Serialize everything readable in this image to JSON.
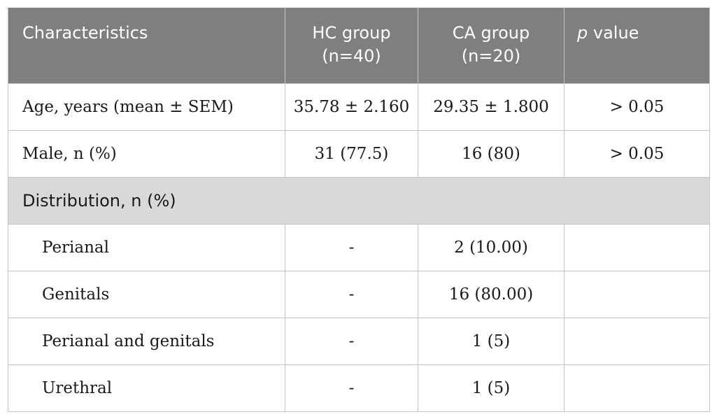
{
  "table": {
    "headers": {
      "characteristics": "Characteristics",
      "hc_group_line1": "HC group",
      "hc_group_line2": "(n=40)",
      "ca_group_line1": "CA group",
      "ca_group_line2": "(n=20)",
      "p_italic": "p",
      "p_rest": " value"
    },
    "rows": [
      {
        "label": "Age, years (mean ± SEM)",
        "hc": "35.78 ± 2.160",
        "ca": "29.35 ± 1.800",
        "p": "> 0.05"
      },
      {
        "label": "Male, n (%)",
        "hc": "31 (77.5)",
        "ca": "16 (80)",
        "p": "> 0.05"
      }
    ],
    "section": {
      "label": "Distribution, n (%)"
    },
    "sub_rows": [
      {
        "label": "Perianal",
        "hc": "-",
        "ca": "2 (10.00)",
        "p": ""
      },
      {
        "label": "Genitals",
        "hc": "-",
        "ca": "16 (80.00)",
        "p": ""
      },
      {
        "label": "Perianal and genitals",
        "hc": "-",
        "ca": "1 (5)",
        "p": ""
      },
      {
        "label": "Urethral",
        "hc": "-",
        "ca": "1 (5)",
        "p": ""
      }
    ]
  }
}
